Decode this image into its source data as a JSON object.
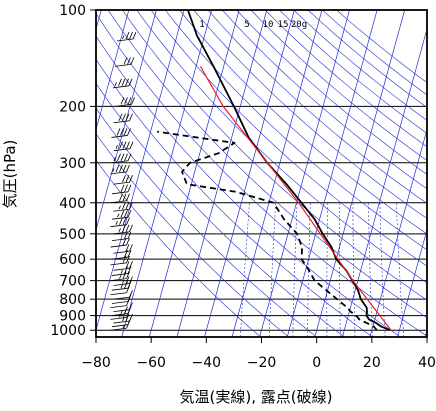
{
  "chart_data": {
    "type": "skew-t",
    "xlabel": "気温(実線), 露点(破線)",
    "ylabel": "気圧(hPa)",
    "xlim": [
      -80,
      40
    ],
    "ylim": [
      1050,
      100
    ],
    "yscale": "log",
    "xticks": [
      "−80",
      "−60",
      "−40",
      "−20",
      "0",
      "20",
      "40"
    ],
    "xtick_values": [
      -80,
      -60,
      -40,
      -20,
      0,
      20,
      40
    ],
    "yticks": [
      "100",
      "200",
      "300",
      "400",
      "500",
      "600",
      "700",
      "800",
      "900",
      "1000"
    ],
    "ytick_values": [
      100,
      200,
      300,
      400,
      500,
      600,
      700,
      800,
      900,
      1000
    ],
    "grid": true,
    "mixing_ratio_labels": [
      "1",
      "5",
      "10",
      "15",
      "20g"
    ],
    "series": [
      {
        "role": "temperature",
        "style": "solid",
        "color": "#000000",
        "points": [
          [
            1000,
            26.6
          ],
          [
            975,
            23.2
          ],
          [
            950,
            20.9
          ],
          [
            925,
            17.9
          ],
          [
            900,
            16.6
          ],
          [
            875,
            16.4
          ],
          [
            850,
            15.9
          ],
          [
            800,
            12.9
          ],
          [
            750,
            11
          ],
          [
            700,
            8
          ],
          [
            650,
            4.7
          ],
          [
            600,
            0
          ],
          [
            550,
            -2.9
          ],
          [
            500,
            -7.4
          ],
          [
            450,
            -11.8
          ],
          [
            400,
            -18.2
          ],
          [
            350,
            -25.5
          ],
          [
            300,
            -34.6
          ],
          [
            250,
            -43.9
          ],
          [
            200,
            -52.3
          ],
          [
            150,
            -63.7
          ],
          [
            120,
            -72.8
          ],
          [
            100,
            -78.6
          ]
        ]
      },
      {
        "role": "dewpoint",
        "style": "dashed",
        "color": "#000000",
        "points": [
          [
            1000,
            21.8
          ],
          [
            975,
            20.4
          ],
          [
            950,
            17.5
          ],
          [
            925,
            14.4
          ],
          [
            900,
            12.8
          ],
          [
            875,
            10.5
          ],
          [
            850,
            8.8
          ],
          [
            800,
            4.3
          ],
          [
            750,
            -0.5
          ],
          [
            700,
            -5.7
          ],
          [
            650,
            -8.8
          ],
          [
            600,
            -12.5
          ],
          [
            550,
            -13.6
          ],
          [
            500,
            -16.7
          ],
          [
            450,
            -22.9
          ],
          [
            400,
            -28.3
          ],
          [
            370,
            -42.9
          ],
          [
            350,
            -61.6
          ],
          [
            320,
            -64.6
          ],
          [
            300,
            -62.6
          ],
          [
            280,
            -53.2
          ],
          [
            260,
            -48.5
          ],
          [
            240,
            -77.6
          ]
        ]
      },
      {
        "role": "reference",
        "style": "solid",
        "color": "#e8202a",
        "points": [
          [
            1000,
            27
          ],
          [
            700,
            8.2
          ],
          [
            400,
            -19.2
          ],
          [
            200,
            -56.2
          ],
          [
            150,
            -68.4
          ]
        ]
      }
    ],
    "wind_barbs": {
      "color": "#000000",
      "pressures": [
        1000,
        975,
        950,
        925,
        900,
        875,
        850,
        825,
        800,
        775,
        750,
        725,
        700,
        675,
        650,
        625,
        600,
        575,
        550,
        525,
        500,
        475,
        450,
        425,
        400,
        375,
        350,
        325,
        300,
        275,
        250,
        225,
        200,
        175,
        150,
        125,
        100
      ],
      "speed_kt": [
        5,
        10,
        15,
        15,
        15,
        10,
        10,
        10,
        10,
        10,
        15,
        15,
        15,
        15,
        20,
        20,
        20,
        20,
        20,
        20,
        25,
        25,
        25,
        25,
        30,
        30,
        30,
        35,
        35,
        35,
        40,
        40,
        40,
        35,
        30,
        25,
        20
      ]
    }
  }
}
